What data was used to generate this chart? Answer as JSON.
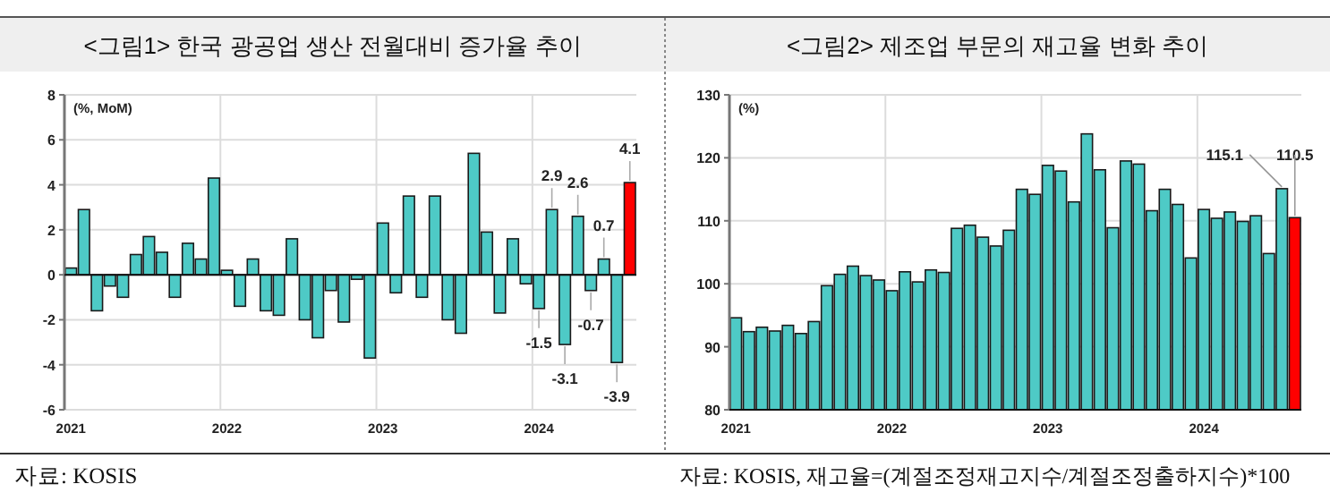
{
  "chart_data": [
    {
      "type": "bar",
      "title": "<그림1> 한국 광공업 생산 전월대비 증가율 추이",
      "ylabel": "(%, MoM)",
      "categories": [
        "2021",
        null,
        null,
        null,
        null,
        null,
        null,
        null,
        null,
        null,
        null,
        null,
        "2022",
        null,
        null,
        null,
        null,
        null,
        null,
        null,
        null,
        null,
        null,
        null,
        "2023",
        null,
        null,
        null,
        null,
        null,
        null,
        null,
        null,
        null,
        null,
        null,
        "2024",
        null,
        null,
        null,
        null,
        null,
        null,
        null
      ],
      "values": [
        0.3,
        2.9,
        -1.6,
        -0.5,
        -1.0,
        0.9,
        1.7,
        1.0,
        -1.0,
        1.4,
        0.7,
        4.3,
        0.2,
        -1.4,
        0.7,
        -1.6,
        -1.8,
        1.6,
        -2.0,
        -2.8,
        -0.7,
        -2.1,
        -0.2,
        -3.7,
        2.3,
        -0.8,
        3.5,
        -1.0,
        3.5,
        -2.0,
        -2.6,
        5.4,
        1.9,
        -1.7,
        1.6,
        -0.4,
        -1.5,
        2.9,
        -3.1,
        2.6,
        -0.7,
        0.7,
        -3.9,
        4.1
      ],
      "colors": [
        "#4ecac6",
        "#4ecac6",
        "#4ecac6",
        "#4ecac6",
        "#4ecac6",
        "#4ecac6",
        "#4ecac6",
        "#4ecac6",
        "#4ecac6",
        "#4ecac6",
        "#4ecac6",
        "#4ecac6",
        "#4ecac6",
        "#4ecac6",
        "#4ecac6",
        "#4ecac6",
        "#4ecac6",
        "#4ecac6",
        "#4ecac6",
        "#4ecac6",
        "#4ecac6",
        "#4ecac6",
        "#4ecac6",
        "#4ecac6",
        "#4ecac6",
        "#4ecac6",
        "#4ecac6",
        "#4ecac6",
        "#4ecac6",
        "#4ecac6",
        "#4ecac6",
        "#4ecac6",
        "#4ecac6",
        "#4ecac6",
        "#4ecac6",
        "#4ecac6",
        "#4ecac6",
        "#4ecac6",
        "#4ecac6",
        "#4ecac6",
        "#4ecac6",
        "#4ecac6",
        "#4ecac6",
        "#ff0000"
      ],
      "value_labels": [
        null,
        null,
        null,
        null,
        null,
        null,
        null,
        null,
        null,
        null,
        null,
        null,
        null,
        null,
        null,
        null,
        null,
        null,
        null,
        null,
        null,
        null,
        null,
        null,
        null,
        null,
        null,
        null,
        null,
        null,
        null,
        null,
        null,
        null,
        null,
        null,
        "-1.5",
        "2.9",
        "-3.1",
        "2.6",
        "-0.7",
        "0.7",
        "-3.9",
        "4.1"
      ],
      "ylim": [
        -6,
        8
      ],
      "yticks": [
        -6,
        -4,
        -2,
        0,
        2,
        4,
        6,
        8
      ],
      "grid": true,
      "annotations": [
        "자료: KOSIS"
      ]
    },
    {
      "type": "bar",
      "title": "<그림2> 제조업 부문의 재고율 변화 추이",
      "ylabel": "(%)",
      "categories": [
        "2021",
        null,
        null,
        null,
        null,
        null,
        null,
        null,
        null,
        null,
        null,
        null,
        "2022",
        null,
        null,
        null,
        null,
        null,
        null,
        null,
        null,
        null,
        null,
        null,
        "2023",
        null,
        null,
        null,
        null,
        null,
        null,
        null,
        null,
        null,
        null,
        null,
        "2024",
        null,
        null,
        null,
        null,
        null,
        null,
        null
      ],
      "values": [
        94.6,
        92.4,
        93.1,
        92.5,
        93.4,
        92.1,
        94.0,
        99.7,
        101.5,
        102.8,
        101.3,
        100.6,
        98.9,
        101.9,
        100.3,
        102.2,
        101.8,
        108.8,
        109.3,
        107.4,
        106.0,
        108.5,
        115.0,
        114.2,
        118.8,
        117.9,
        113.0,
        123.8,
        118.1,
        108.9,
        119.5,
        119.0,
        111.6,
        115.0,
        112.6,
        104.1,
        111.8,
        110.4,
        111.4,
        109.9,
        110.8,
        104.8,
        115.1,
        110.5
      ],
      "colors": [
        "#4ecac6",
        "#4ecac6",
        "#4ecac6",
        "#4ecac6",
        "#4ecac6",
        "#4ecac6",
        "#4ecac6",
        "#4ecac6",
        "#4ecac6",
        "#4ecac6",
        "#4ecac6",
        "#4ecac6",
        "#4ecac6",
        "#4ecac6",
        "#4ecac6",
        "#4ecac6",
        "#4ecac6",
        "#4ecac6",
        "#4ecac6",
        "#4ecac6",
        "#4ecac6",
        "#4ecac6",
        "#4ecac6",
        "#4ecac6",
        "#4ecac6",
        "#4ecac6",
        "#4ecac6",
        "#4ecac6",
        "#4ecac6",
        "#4ecac6",
        "#4ecac6",
        "#4ecac6",
        "#4ecac6",
        "#4ecac6",
        "#4ecac6",
        "#4ecac6",
        "#4ecac6",
        "#4ecac6",
        "#4ecac6",
        "#4ecac6",
        "#4ecac6",
        "#4ecac6",
        "#4ecac6",
        "#ff0000"
      ],
      "value_labels": [
        null,
        null,
        null,
        null,
        null,
        null,
        null,
        null,
        null,
        null,
        null,
        null,
        null,
        null,
        null,
        null,
        null,
        null,
        null,
        null,
        null,
        null,
        null,
        null,
        null,
        null,
        null,
        null,
        null,
        null,
        null,
        null,
        null,
        null,
        null,
        null,
        null,
        null,
        null,
        null,
        null,
        null,
        "115.1",
        "110.5"
      ],
      "ylim": [
        80,
        130
      ],
      "yticks": [
        80,
        90,
        100,
        110,
        120,
        130
      ],
      "grid": true,
      "annotations": [
        "자료: KOSIS, 재고율=(계절조정재고지수/계절조정출하지수)*100"
      ]
    }
  ]
}
